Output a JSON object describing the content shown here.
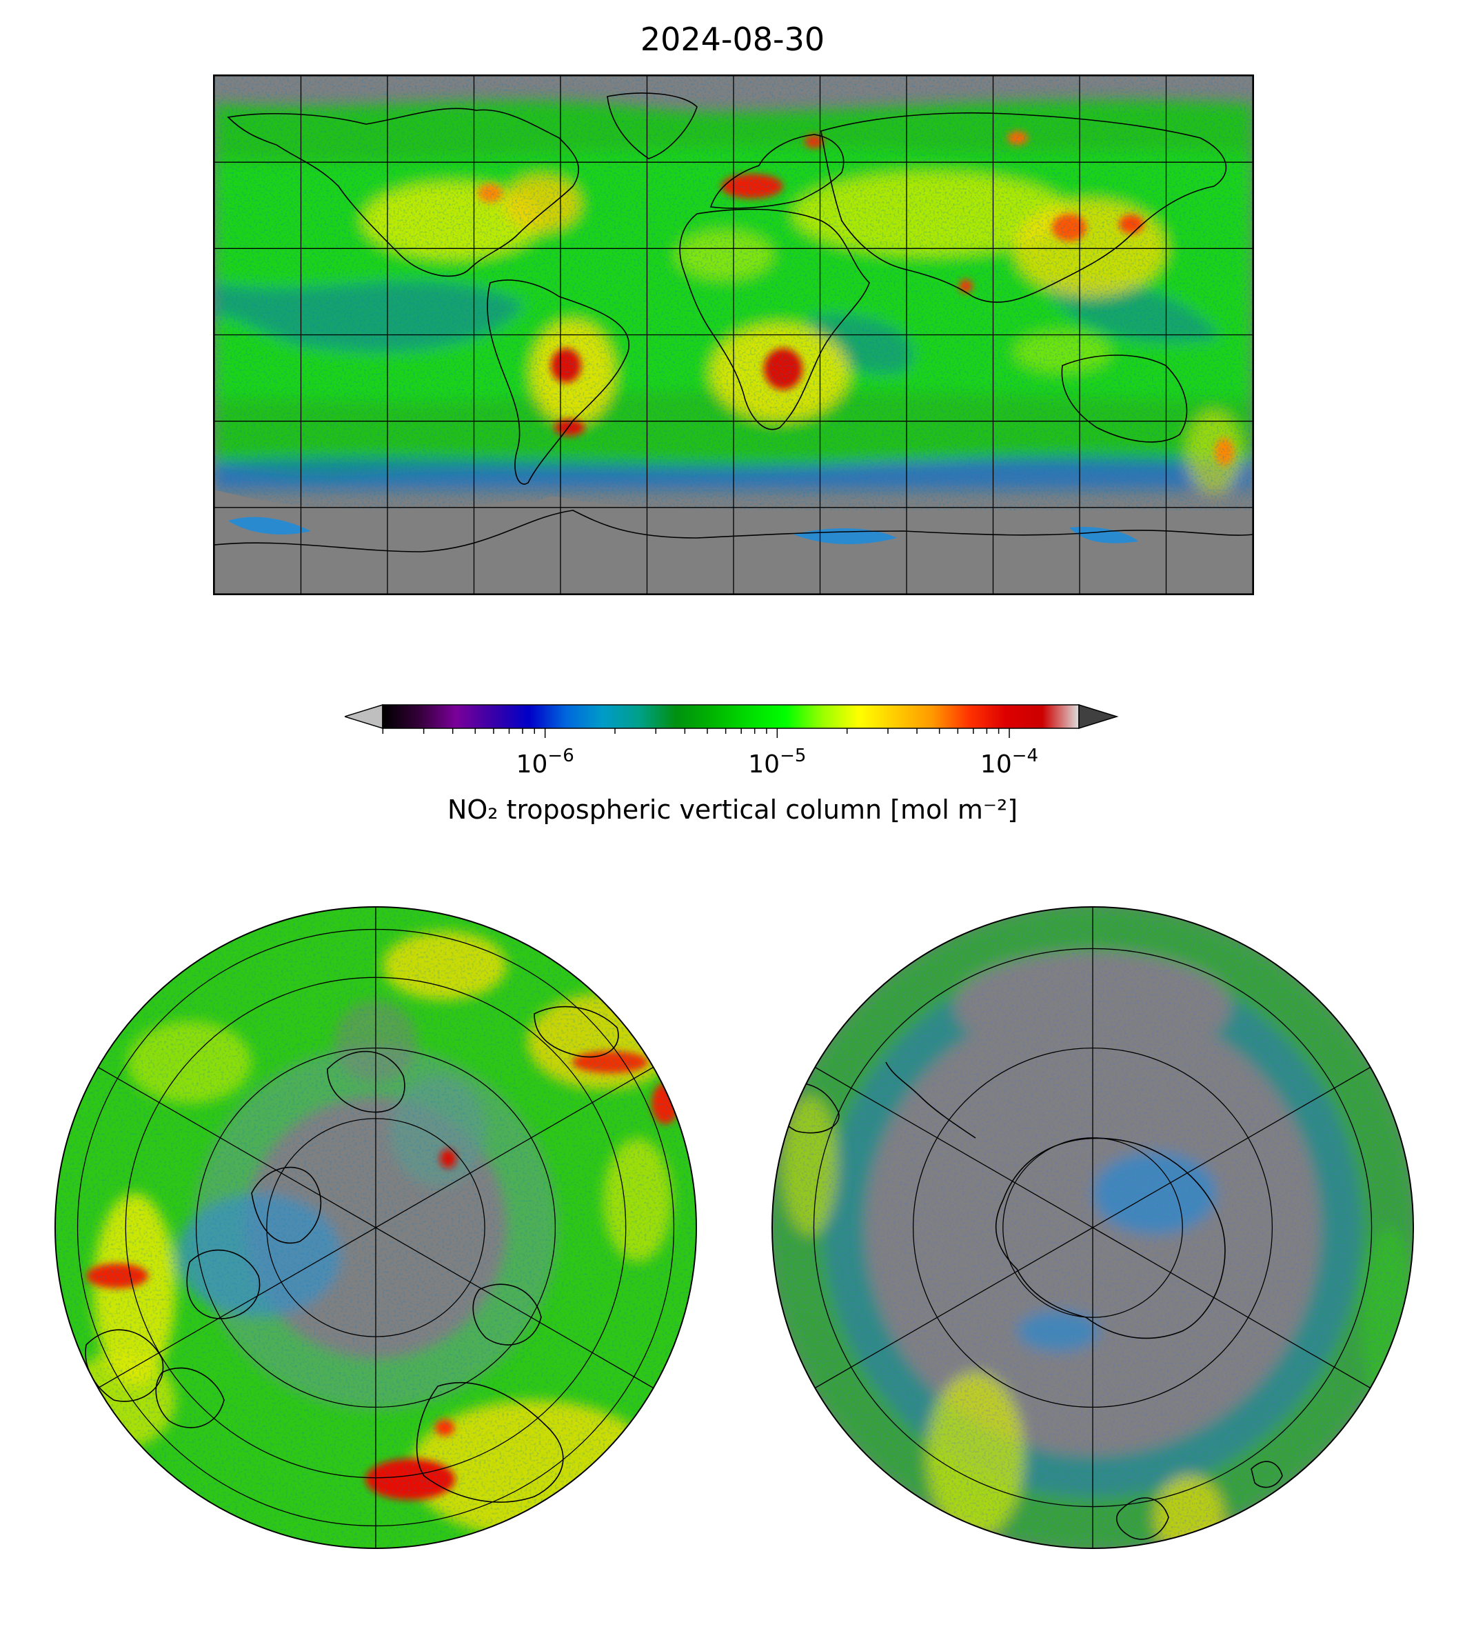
{
  "title": "2024-08-30",
  "colorbar": {
    "label": "NO₂ tropospheric vertical column [mol m⁻²]",
    "scale": "log",
    "ticks": [
      {
        "base": "10",
        "exp": "−6",
        "value": 1e-06
      },
      {
        "base": "10",
        "exp": "−5",
        "value": 1e-05
      },
      {
        "base": "10",
        "exp": "−4",
        "value": 0.0001
      }
    ],
    "colors": [
      "#000000",
      "#35003a",
      "#7a0099",
      "#3a00a8",
      "#0000c8",
      "#0066dd",
      "#009bc8",
      "#00a08a",
      "#009010",
      "#00b400",
      "#00dd00",
      "#00ff00",
      "#99ff00",
      "#ffff00",
      "#ffcc00",
      "#ff9900",
      "#ff3300",
      "#dd0000",
      "#cc0000",
      "#dddddd"
    ],
    "under_color": "#bfbfbf",
    "over_color": "#404040"
  },
  "maps": {
    "global": {
      "projection": "plate-carree",
      "gridlines": true,
      "missing_color": "#808080"
    },
    "north_polar": {
      "projection": "north-polar-stereographic",
      "gridlines": true
    },
    "south_polar": {
      "projection": "south-polar-stereographic",
      "gridlines": true
    }
  }
}
